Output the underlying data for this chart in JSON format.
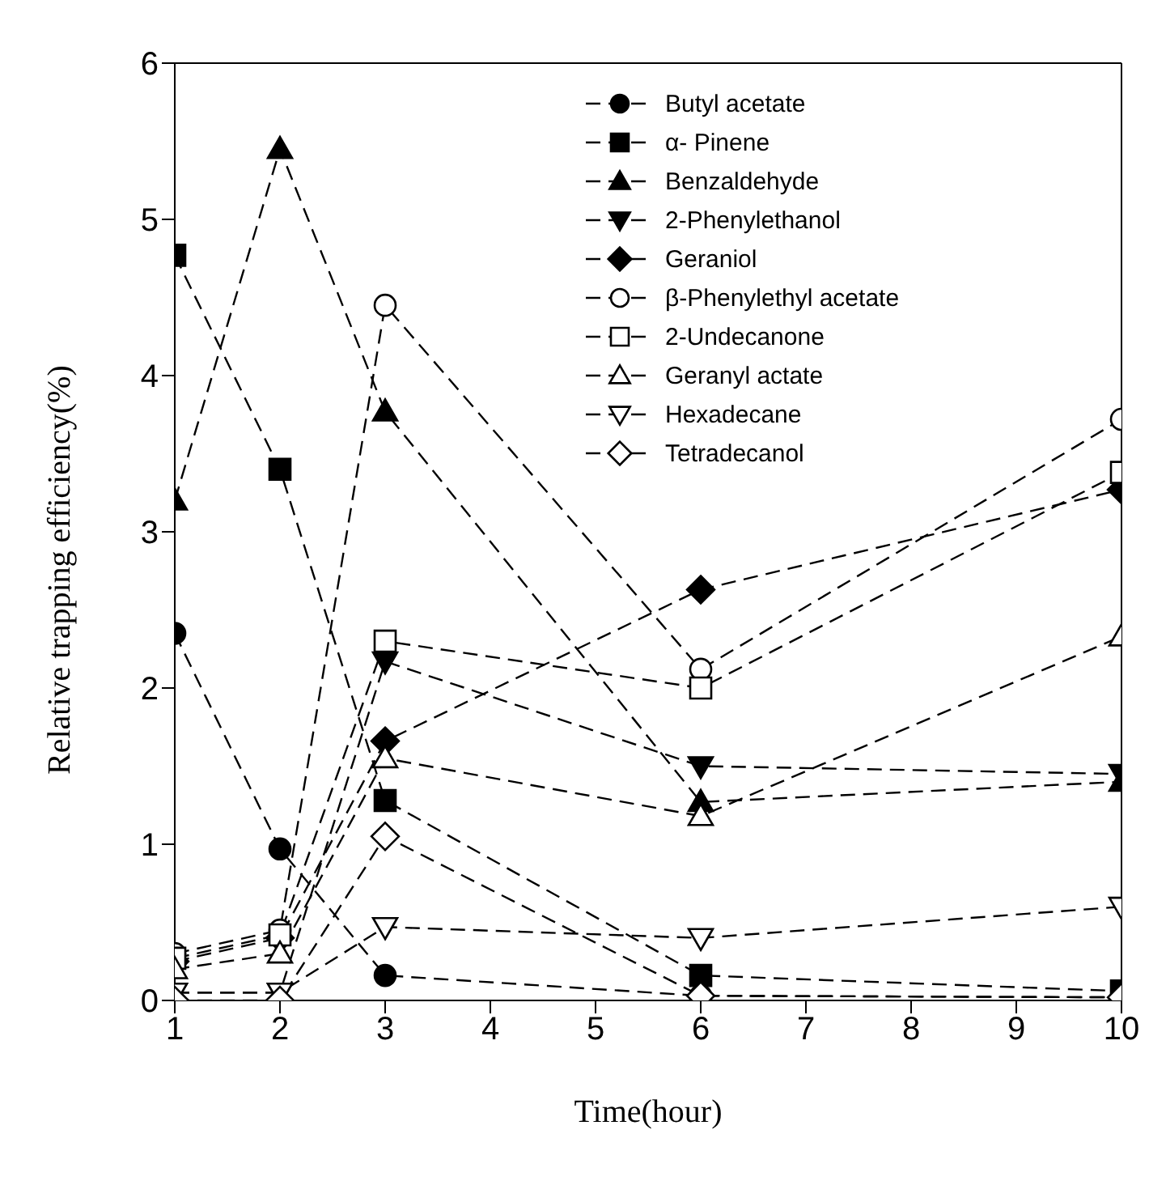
{
  "chart_data": {
    "type": "line",
    "xlabel": "Time(hour)",
    "ylabel": "Relative trapping efficiency(%)",
    "x": [
      1,
      2,
      3,
      6,
      10
    ],
    "xlim": [
      1,
      10
    ],
    "xticks": [
      1,
      2,
      3,
      4,
      5,
      6,
      7,
      8,
      9,
      10
    ],
    "ylim": [
      0,
      6
    ],
    "yticks": [
      0,
      1,
      2,
      3,
      4,
      5,
      6
    ],
    "grid": false,
    "legend": "top right",
    "line_style": "dashed",
    "series": [
      {
        "name": "Butyl acetate",
        "color": "#000000",
        "marker": "circle",
        "values": [
          2.35,
          0.97,
          0.16,
          0.03,
          0.02
        ]
      },
      {
        "name": "α- Pinene",
        "color": "#000000",
        "marker": "square",
        "values": [
          4.77,
          3.4,
          1.28,
          0.16,
          0.06
        ]
      },
      {
        "name": "Benzaldehyde",
        "color": "#000000",
        "marker": "triangle",
        "values": [
          3.2,
          5.45,
          3.77,
          1.27,
          1.4
        ]
      },
      {
        "name": "2-Phenylethanol",
        "color": "#000000",
        "marker": "triangle_down",
        "values": [
          0.05,
          0.05,
          2.17,
          1.5,
          1.45
        ]
      },
      {
        "name": "Geraniol",
        "color": "#000000",
        "marker": "diamond",
        "values": [
          0.25,
          0.4,
          1.66,
          2.63,
          3.27
        ]
      },
      {
        "name": "β-Phenylethyl acetate",
        "color": "#000000",
        "marker": "circle_open",
        "values": [
          0.3,
          0.45,
          4.45,
          2.12,
          3.72
        ]
      },
      {
        "name": "2-Undecanone",
        "color": "#000000",
        "marker": "square_open",
        "values": [
          0.27,
          0.42,
          2.3,
          2.0,
          3.38
        ]
      },
      {
        "name": "Geranyl actate",
        "color": "#000000",
        "marker": "triangle_open",
        "values": [
          0.2,
          0.3,
          1.55,
          1.18,
          2.33
        ]
      },
      {
        "name": "Hexadecane",
        "color": "#000000",
        "marker": "triangle_down_open",
        "values": [
          0.05,
          0.05,
          0.47,
          0.4,
          0.6
        ]
      },
      {
        "name": "Tetradecanol",
        "color": "#000000",
        "marker": "diamond_open",
        "values": [
          0.0,
          0.0,
          1.05,
          0.03,
          0.02
        ]
      }
    ]
  }
}
